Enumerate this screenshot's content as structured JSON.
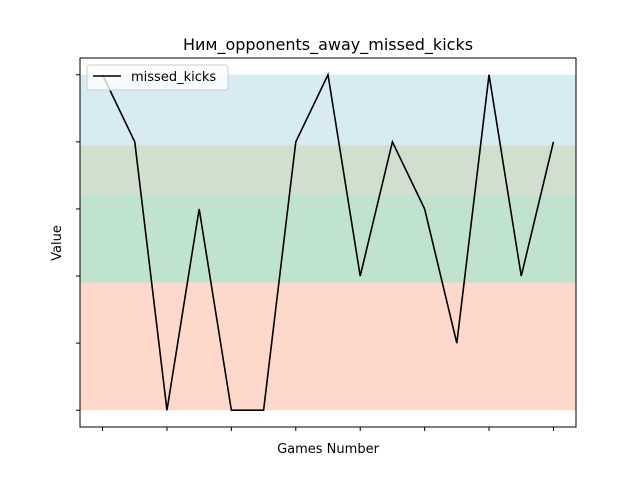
{
  "chart_data": {
    "type": "line",
    "title": "Ним_opponents_away_missed_kicks",
    "xlabel": "Games Number",
    "ylabel": "Value",
    "x": [
      1,
      2,
      3,
      4,
      5,
      6,
      7,
      8,
      9,
      10,
      11,
      12,
      13,
      14,
      15
    ],
    "series": [
      {
        "name": "missed_kicks",
        "color": "#000000",
        "values": [
          5,
          4,
          0,
          3,
          0,
          0,
          4,
          5,
          2,
          4,
          3,
          1,
          5,
          2,
          4
        ]
      }
    ],
    "ylim": [
      -0.25,
      5.25
    ],
    "xlim": [
      0.3,
      15.7
    ],
    "x_ticks": [
      1,
      3,
      5,
      7,
      9,
      11,
      13,
      15
    ],
    "y_ticks": [
      0,
      1,
      2,
      3,
      4,
      5
    ],
    "tick_labels_visible": false,
    "legend_position": "top-left",
    "grid": false,
    "bands": [
      {
        "from": 3.95,
        "to": 5.0,
        "color": "#add8e6",
        "opacity": 0.5
      },
      {
        "from": 3.2,
        "to": 3.95,
        "color": "#a3bfa0",
        "opacity": 0.5
      },
      {
        "from": 1.9,
        "to": 3.2,
        "color": "#7fc89a",
        "opacity": 0.5
      },
      {
        "from": 0.0,
        "to": 1.9,
        "color": "#ffb299",
        "opacity": 0.5
      }
    ]
  }
}
